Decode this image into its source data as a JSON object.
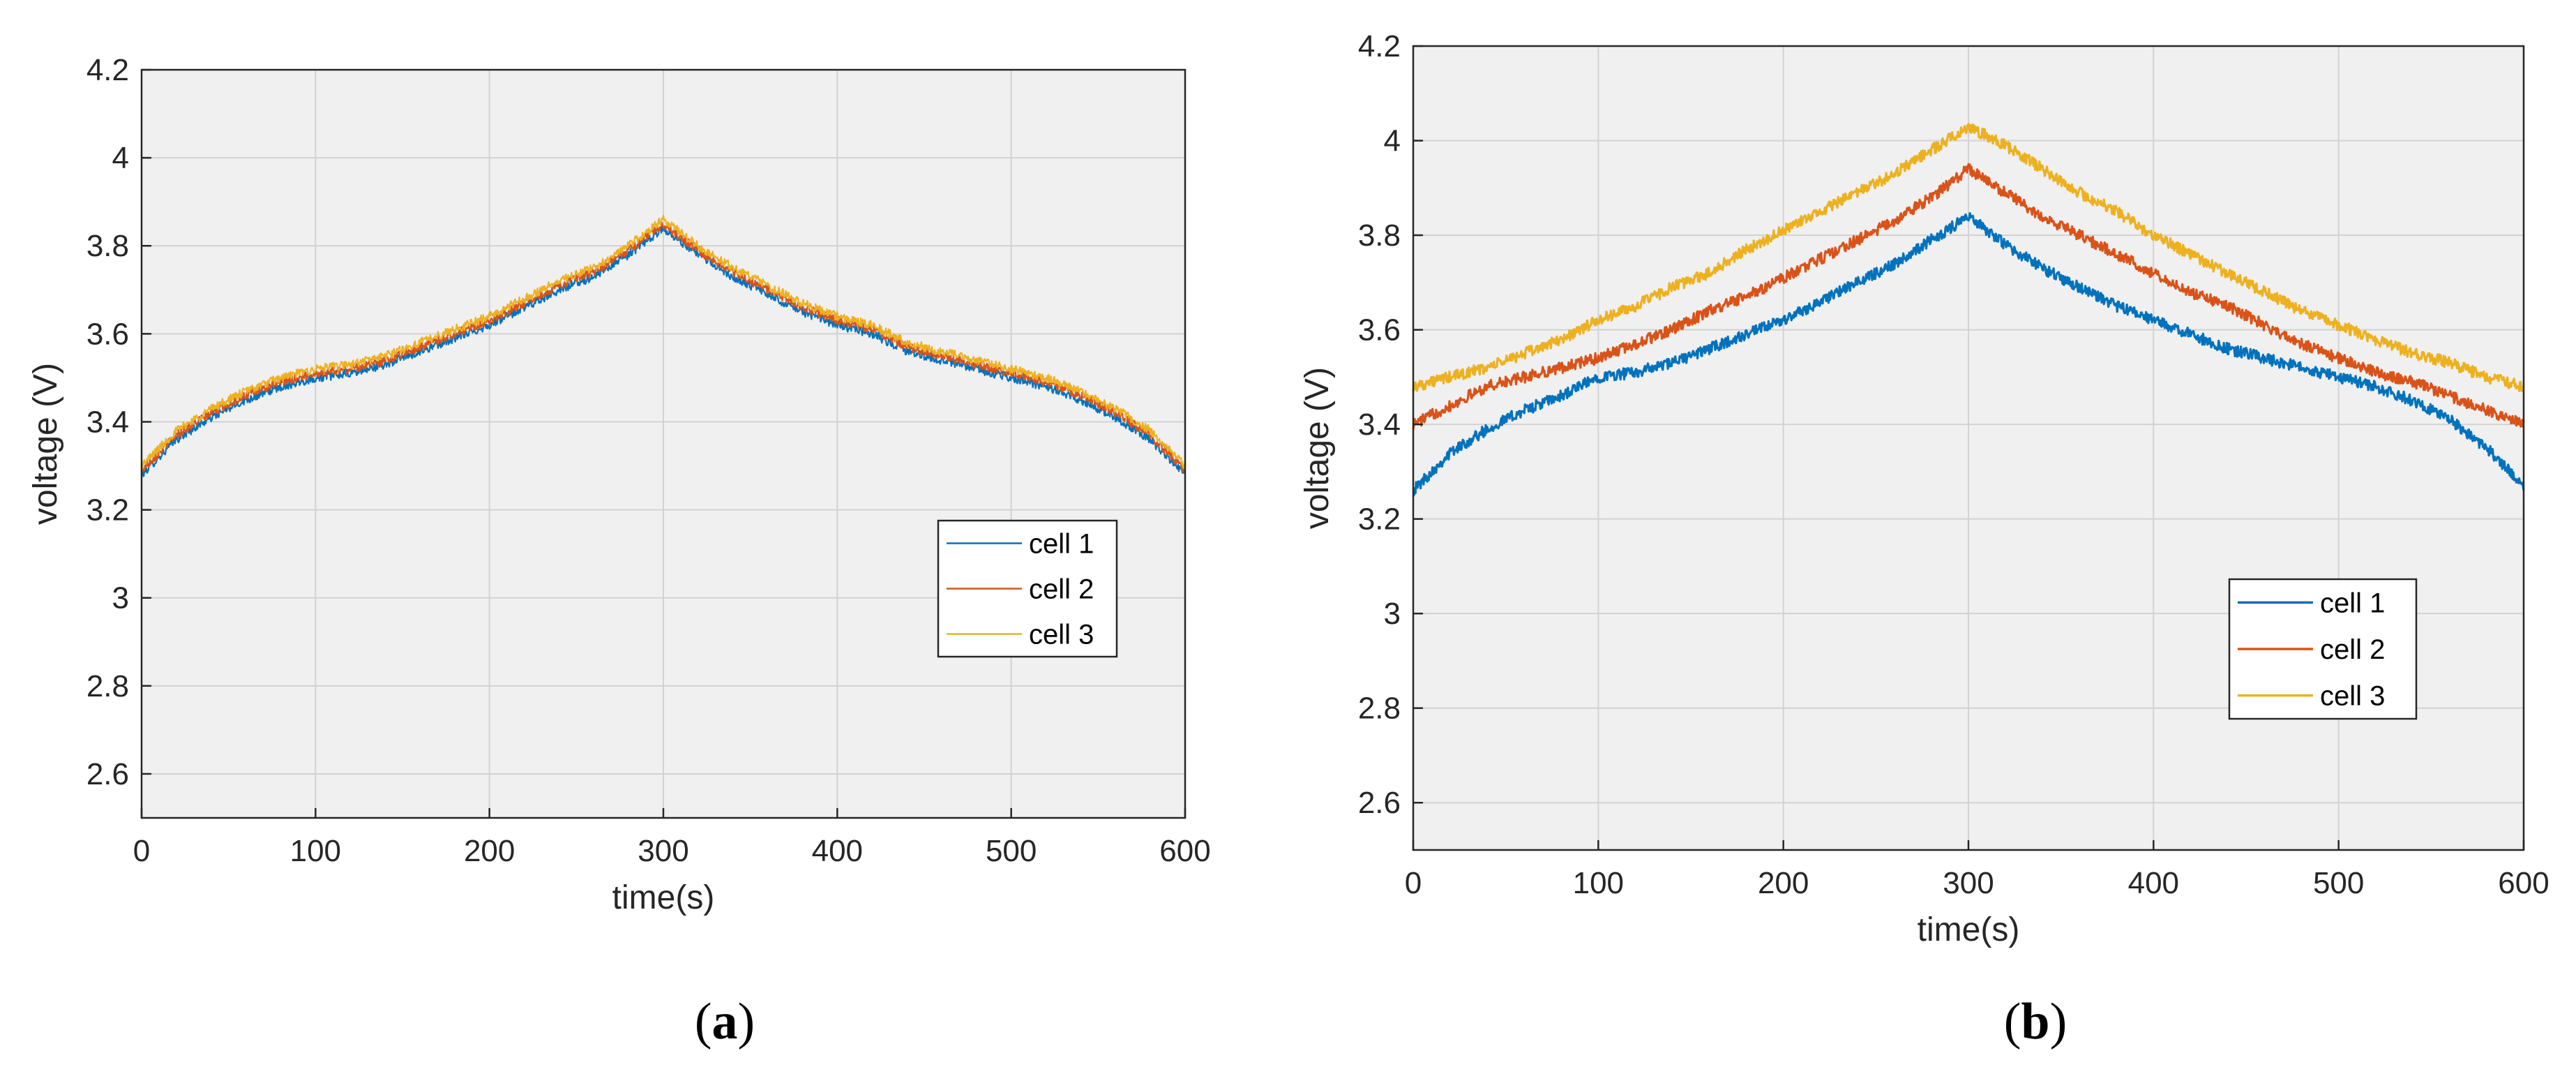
{
  "colors": {
    "cell1": "#0072BD",
    "cell2": "#D95319",
    "cell3": "#EDB120",
    "plot_bg": "#F0F0F0",
    "grid": "#D2D2D2",
    "axis": "#262626"
  },
  "chart_data": [
    {
      "type": "line",
      "panel_label": "a",
      "xlabel": "time(s)",
      "ylabel": "voltage (V)",
      "xlim": [
        0,
        600
      ],
      "ylim": [
        2.5,
        4.2
      ],
      "xticks": [
        0,
        100,
        200,
        300,
        400,
        500,
        600
      ],
      "xtick_labels": [
        "0",
        "100",
        "200",
        "300",
        "400",
        "500",
        "600"
      ],
      "yticks": [
        2.6,
        2.8,
        3.0,
        3.2,
        3.4,
        3.6,
        3.8,
        4.0,
        4.2
      ],
      "ytick_labels": [
        "2.6",
        "2.8",
        "3",
        "3.2",
        "3.4",
        "3.6",
        "3.8",
        "4",
        "4.2"
      ],
      "grid": true,
      "legend_position": "lower-right",
      "x": [
        0,
        20,
        40,
        60,
        80,
        100,
        120,
        140,
        160,
        180,
        200,
        220,
        240,
        260,
        280,
        300,
        320,
        340,
        360,
        380,
        400,
        420,
        440,
        460,
        480,
        500,
        520,
        540,
        560,
        580,
        600
      ],
      "series": [
        {
          "name": "cell 1",
          "values": [
            3.28,
            3.36,
            3.41,
            3.45,
            3.48,
            3.5,
            3.51,
            3.53,
            3.56,
            3.59,
            3.62,
            3.66,
            3.7,
            3.73,
            3.78,
            3.84,
            3.78,
            3.73,
            3.69,
            3.65,
            3.62,
            3.6,
            3.56,
            3.54,
            3.52,
            3.5,
            3.48,
            3.45,
            3.41,
            3.36,
            3.28
          ]
        },
        {
          "name": "cell 2",
          "values": [
            3.29,
            3.37,
            3.42,
            3.46,
            3.49,
            3.51,
            3.52,
            3.54,
            3.57,
            3.6,
            3.63,
            3.67,
            3.71,
            3.74,
            3.79,
            3.85,
            3.79,
            3.74,
            3.7,
            3.66,
            3.63,
            3.61,
            3.57,
            3.55,
            3.53,
            3.51,
            3.49,
            3.46,
            3.42,
            3.37,
            3.29
          ]
        },
        {
          "name": "cell 3",
          "values": [
            3.3,
            3.38,
            3.43,
            3.47,
            3.5,
            3.52,
            3.53,
            3.55,
            3.58,
            3.61,
            3.64,
            3.68,
            3.72,
            3.75,
            3.8,
            3.86,
            3.8,
            3.75,
            3.71,
            3.67,
            3.64,
            3.62,
            3.58,
            3.56,
            3.54,
            3.52,
            3.5,
            3.47,
            3.43,
            3.38,
            3.3
          ]
        }
      ]
    },
    {
      "type": "line",
      "panel_label": "b",
      "xlabel": "time(s)",
      "ylabel": "voltage (V)",
      "xlim": [
        0,
        600
      ],
      "ylim": [
        2.5,
        4.2
      ],
      "xticks": [
        0,
        100,
        200,
        300,
        400,
        500,
        600
      ],
      "xtick_labels": [
        "0",
        "100",
        "200",
        "300",
        "400",
        "500",
        "600"
      ],
      "yticks": [
        2.6,
        2.8,
        3.0,
        3.2,
        3.4,
        3.6,
        3.8,
        4.0,
        4.2
      ],
      "ytick_labels": [
        "2.6",
        "2.8",
        "3",
        "3.2",
        "3.4",
        "3.6",
        "3.8",
        "4",
        "4.2"
      ],
      "grid": true,
      "legend_position": "lower-right",
      "x": [
        0,
        20,
        40,
        60,
        80,
        100,
        120,
        140,
        160,
        180,
        200,
        220,
        240,
        260,
        280,
        300,
        320,
        340,
        360,
        380,
        400,
        420,
        440,
        460,
        480,
        500,
        520,
        540,
        560,
        580,
        600
      ],
      "series": [
        {
          "name": "cell 1",
          "values": [
            3.26,
            3.34,
            3.39,
            3.43,
            3.46,
            3.5,
            3.51,
            3.53,
            3.56,
            3.59,
            3.62,
            3.66,
            3.7,
            3.74,
            3.79,
            3.84,
            3.78,
            3.73,
            3.69,
            3.65,
            3.62,
            3.59,
            3.56,
            3.54,
            3.52,
            3.5,
            3.48,
            3.45,
            3.41,
            3.35,
            3.27
          ]
        },
        {
          "name": "cell 2",
          "values": [
            3.4,
            3.44,
            3.48,
            3.5,
            3.52,
            3.54,
            3.57,
            3.6,
            3.64,
            3.67,
            3.71,
            3.75,
            3.79,
            3.83,
            3.88,
            3.94,
            3.89,
            3.84,
            3.8,
            3.76,
            3.72,
            3.68,
            3.65,
            3.61,
            3.57,
            3.54,
            3.51,
            3.49,
            3.46,
            3.43,
            3.4
          ]
        },
        {
          "name": "cell 3",
          "values": [
            3.48,
            3.5,
            3.52,
            3.55,
            3.58,
            3.62,
            3.65,
            3.69,
            3.72,
            3.77,
            3.81,
            3.85,
            3.89,
            3.93,
            3.98,
            4.03,
            3.99,
            3.94,
            3.89,
            3.85,
            3.8,
            3.76,
            3.72,
            3.68,
            3.64,
            3.61,
            3.58,
            3.55,
            3.53,
            3.5,
            3.48
          ]
        }
      ]
    }
  ]
}
